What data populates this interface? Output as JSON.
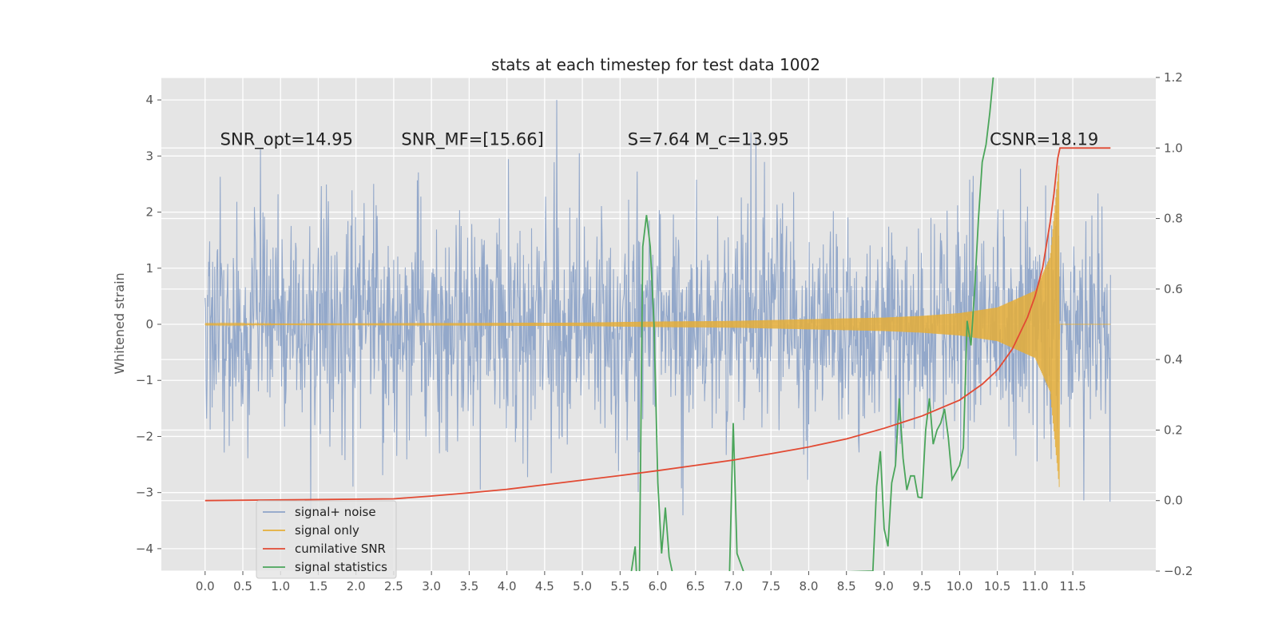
{
  "colors": {
    "plot_bg": "#e5e5e5",
    "grid": "#ffffff",
    "signal_noise": "#8ea4c8",
    "signal_only": "#e5ae38",
    "cumulative_snr": "#e24a33",
    "signal_stats": "#4aa55a"
  },
  "chart_data": {
    "type": "line",
    "title": "stats at each timestep for test data 1002",
    "ylabel": "Whitened strain",
    "xlim": [
      -0.58,
      12.6
    ],
    "ylim": [
      -4.4,
      4.4
    ],
    "y2lim": [
      -0.2,
      1.2
    ],
    "grid": true,
    "legend_position": "lower-left",
    "x_ticks": [
      0.0,
      0.5,
      1.0,
      1.5,
      2.0,
      2.5,
      3.0,
      3.5,
      4.0,
      4.5,
      5.0,
      5.5,
      6.0,
      6.5,
      7.0,
      7.5,
      8.0,
      8.5,
      9.0,
      9.5,
      10.0,
      10.5,
      11.0,
      11.5
    ],
    "x_tick_labels": [
      "0.0",
      "0.5",
      "1.0",
      "1.5",
      "2.0",
      "2.5",
      "3.0",
      "3.5",
      "4.0",
      "4.5",
      "5.0",
      "5.5",
      "6.0",
      "6.5",
      "7.0",
      "7.5",
      "8.0",
      "8.5",
      "9.0",
      "9.5",
      "10.0",
      "10.5",
      "11.0",
      "11.5"
    ],
    "y_ticks": [
      4,
      3,
      2,
      1,
      0,
      -1,
      -2,
      -3,
      -4
    ],
    "y_tick_labels": [
      "4",
      "3",
      "2",
      "1",
      "0",
      "−1",
      "−2",
      "−3",
      "−4"
    ],
    "y2_ticks": [
      1.2,
      1.0,
      0.8,
      0.6,
      0.4,
      0.2,
      0.0,
      -0.2
    ],
    "y2_tick_labels": [
      "1.2",
      "1.0",
      "0.8",
      "0.6",
      "0.4",
      "0.2",
      "0.0",
      "−0.2"
    ],
    "annotations": [
      {
        "x": 0.2,
        "y": 3.2,
        "text": "SNR_opt=14.95"
      },
      {
        "x": 2.6,
        "y": 3.2,
        "text": "SNR_MF=[15.66]"
      },
      {
        "x": 5.6,
        "y": 3.2,
        "text": "S=7.64   M_c=13.95"
      },
      {
        "x": 10.4,
        "y": 3.2,
        "text": "CSNR=18.19"
      }
    ],
    "series": [
      {
        "name": "signal+ noise",
        "axis": "left",
        "style": "noise band",
        "x_range": [
          0.0,
          12.0
        ],
        "approx_envelope": [
          -2.2,
          2.2
        ],
        "peak_max": 4.0,
        "peak_min": -4.1
      },
      {
        "name": "signal only",
        "axis": "left",
        "style": "chirp",
        "x_range": [
          0.0,
          12.0
        ],
        "merger_time": 11.32,
        "envelope": {
          "x": [
            0.0,
            5.0,
            6.0,
            7.0,
            8.0,
            9.0,
            9.5,
            10.0,
            10.5,
            11.0,
            11.2,
            11.32
          ],
          "amplitude": [
            0.01,
            0.03,
            0.05,
            0.06,
            0.09,
            0.12,
            0.15,
            0.2,
            0.3,
            0.6,
            1.2,
            2.9
          ]
        }
      },
      {
        "name": "cumilative SNR",
        "axis": "right",
        "x": [
          0.0,
          2.5,
          3.0,
          3.5,
          4.0,
          4.5,
          5.0,
          5.5,
          6.0,
          6.5,
          7.0,
          7.5,
          8.0,
          8.5,
          9.0,
          9.5,
          10.0,
          10.3,
          10.5,
          10.7,
          10.9,
          11.0,
          11.1,
          11.2,
          11.25,
          11.3,
          11.33,
          11.5,
          12.0
        ],
        "y": [
          0.0,
          0.005,
          0.013,
          0.022,
          0.032,
          0.045,
          0.058,
          0.071,
          0.085,
          0.1,
          0.115,
          0.133,
          0.152,
          0.175,
          0.205,
          0.24,
          0.285,
          0.33,
          0.37,
          0.43,
          0.52,
          0.58,
          0.66,
          0.79,
          0.87,
          0.97,
          1.0,
          1.0,
          1.0
        ]
      },
      {
        "name": "signal statistics",
        "axis": "right",
        "x": [
          5.65,
          5.7,
          5.75,
          5.8,
          5.85,
          5.9,
          5.95,
          6.0,
          6.05,
          6.1,
          6.15,
          6.2,
          6.25,
          6.9,
          6.95,
          7.0,
          7.05,
          7.1,
          7.15,
          8.85,
          8.9,
          8.95,
          9.0,
          9.05,
          9.1,
          9.15,
          9.2,
          9.25,
          9.3,
          9.35,
          9.4,
          9.45,
          9.5,
          9.55,
          9.6,
          9.65,
          9.7,
          9.75,
          9.8,
          9.85,
          9.9,
          9.95,
          10.0,
          10.05,
          10.1,
          10.15,
          10.2,
          10.25,
          10.3,
          10.35,
          10.4,
          10.45,
          10.5,
          10.55
        ],
        "y": [
          -0.2,
          -0.13,
          -0.35,
          0.72,
          0.81,
          0.72,
          0.5,
          0.05,
          -0.15,
          -0.02,
          -0.16,
          -0.21,
          -0.35,
          -0.3,
          -0.21,
          0.22,
          -0.15,
          -0.18,
          -0.21,
          -0.2,
          0.04,
          0.14,
          -0.08,
          -0.13,
          0.05,
          0.1,
          0.29,
          0.12,
          0.03,
          0.07,
          0.07,
          0.01,
          0.008,
          0.2,
          0.29,
          0.16,
          0.2,
          0.22,
          0.26,
          0.18,
          0.06,
          0.08,
          0.1,
          0.15,
          0.51,
          0.44,
          0.6,
          0.8,
          0.96,
          1.01,
          1.1,
          1.21,
          1.3,
          1.4
        ]
      }
    ]
  }
}
